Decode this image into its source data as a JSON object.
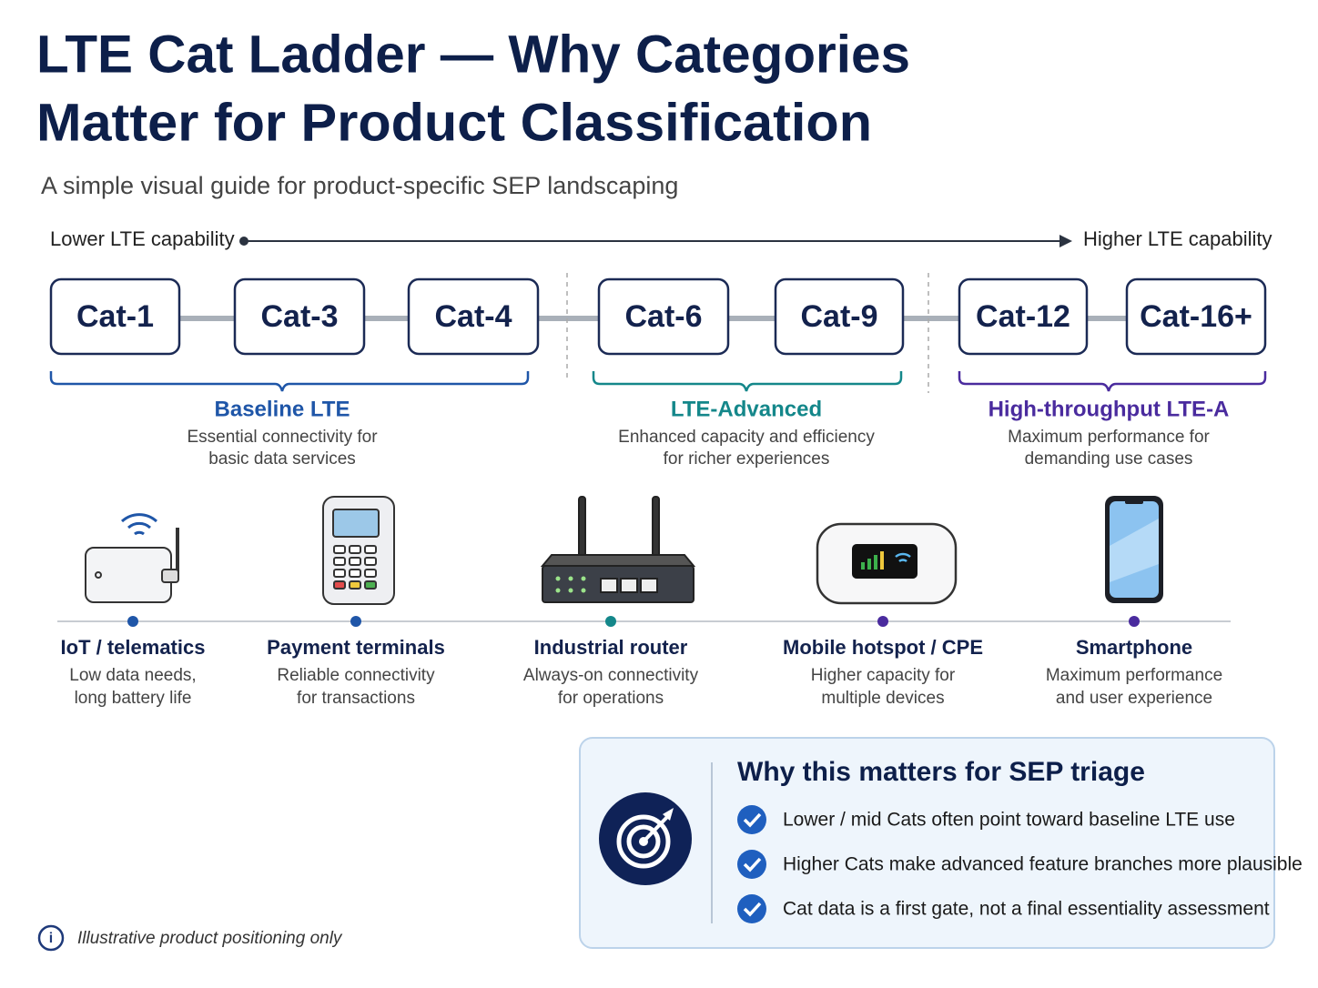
{
  "header": {
    "title": [
      "LTE Cat Ladder — Why Categories",
      "Matter for Product Classification"
    ],
    "subtitle": "A simple visual guide for product-specific SEP landscaping"
  },
  "axis": {
    "low": "Lower LTE capability",
    "high": "Higher LTE capability"
  },
  "categories": [
    "Cat-1",
    "Cat-3",
    "Cat-4",
    "Cat-6",
    "Cat-9",
    "Cat-12",
    "Cat-16+"
  ],
  "groups": [
    {
      "title": "Baseline LTE",
      "description": [
        "Essential connectivity for",
        "basic data services"
      ],
      "color": "#1f56a8"
    },
    {
      "title": "LTE-Advanced",
      "description": [
        "Enhanced capacity and efficiency",
        "for richer experiences"
      ],
      "color": "#14878a"
    },
    {
      "title": "High-throughput LTE-A",
      "description": [
        "Maximum performance for",
        "demanding use cases"
      ],
      "color": "#4a2b9e"
    }
  ],
  "products": [
    {
      "name": "IoT / telematics",
      "description": [
        "Low data needs,",
        "long battery life"
      ],
      "color": "#1f56a8"
    },
    {
      "name": "Payment terminals",
      "description": [
        "Reliable connectivity",
        "for transactions"
      ],
      "color": "#1f56a8"
    },
    {
      "name": "Industrial router",
      "description": [
        "Always-on connectivity",
        "for operations"
      ],
      "color": "#14878a"
    },
    {
      "name": "Mobile hotspot / CPE",
      "description": [
        "Higher capacity for",
        "multiple devices"
      ],
      "color": "#4a2b9e"
    },
    {
      "name": "Smartphone",
      "description": [
        "Maximum performance",
        "and user experience"
      ],
      "color": "#4a2b9e"
    }
  ],
  "triage": {
    "title": "Why this matters for SEP triage",
    "points": [
      "Lower / mid Cats often point toward baseline LTE use",
      "Higher Cats make advanced feature branches more plausible",
      "Cat data is a first gate, not a final essentiality assessment"
    ]
  },
  "footnote": "Illustrative product positioning only"
}
